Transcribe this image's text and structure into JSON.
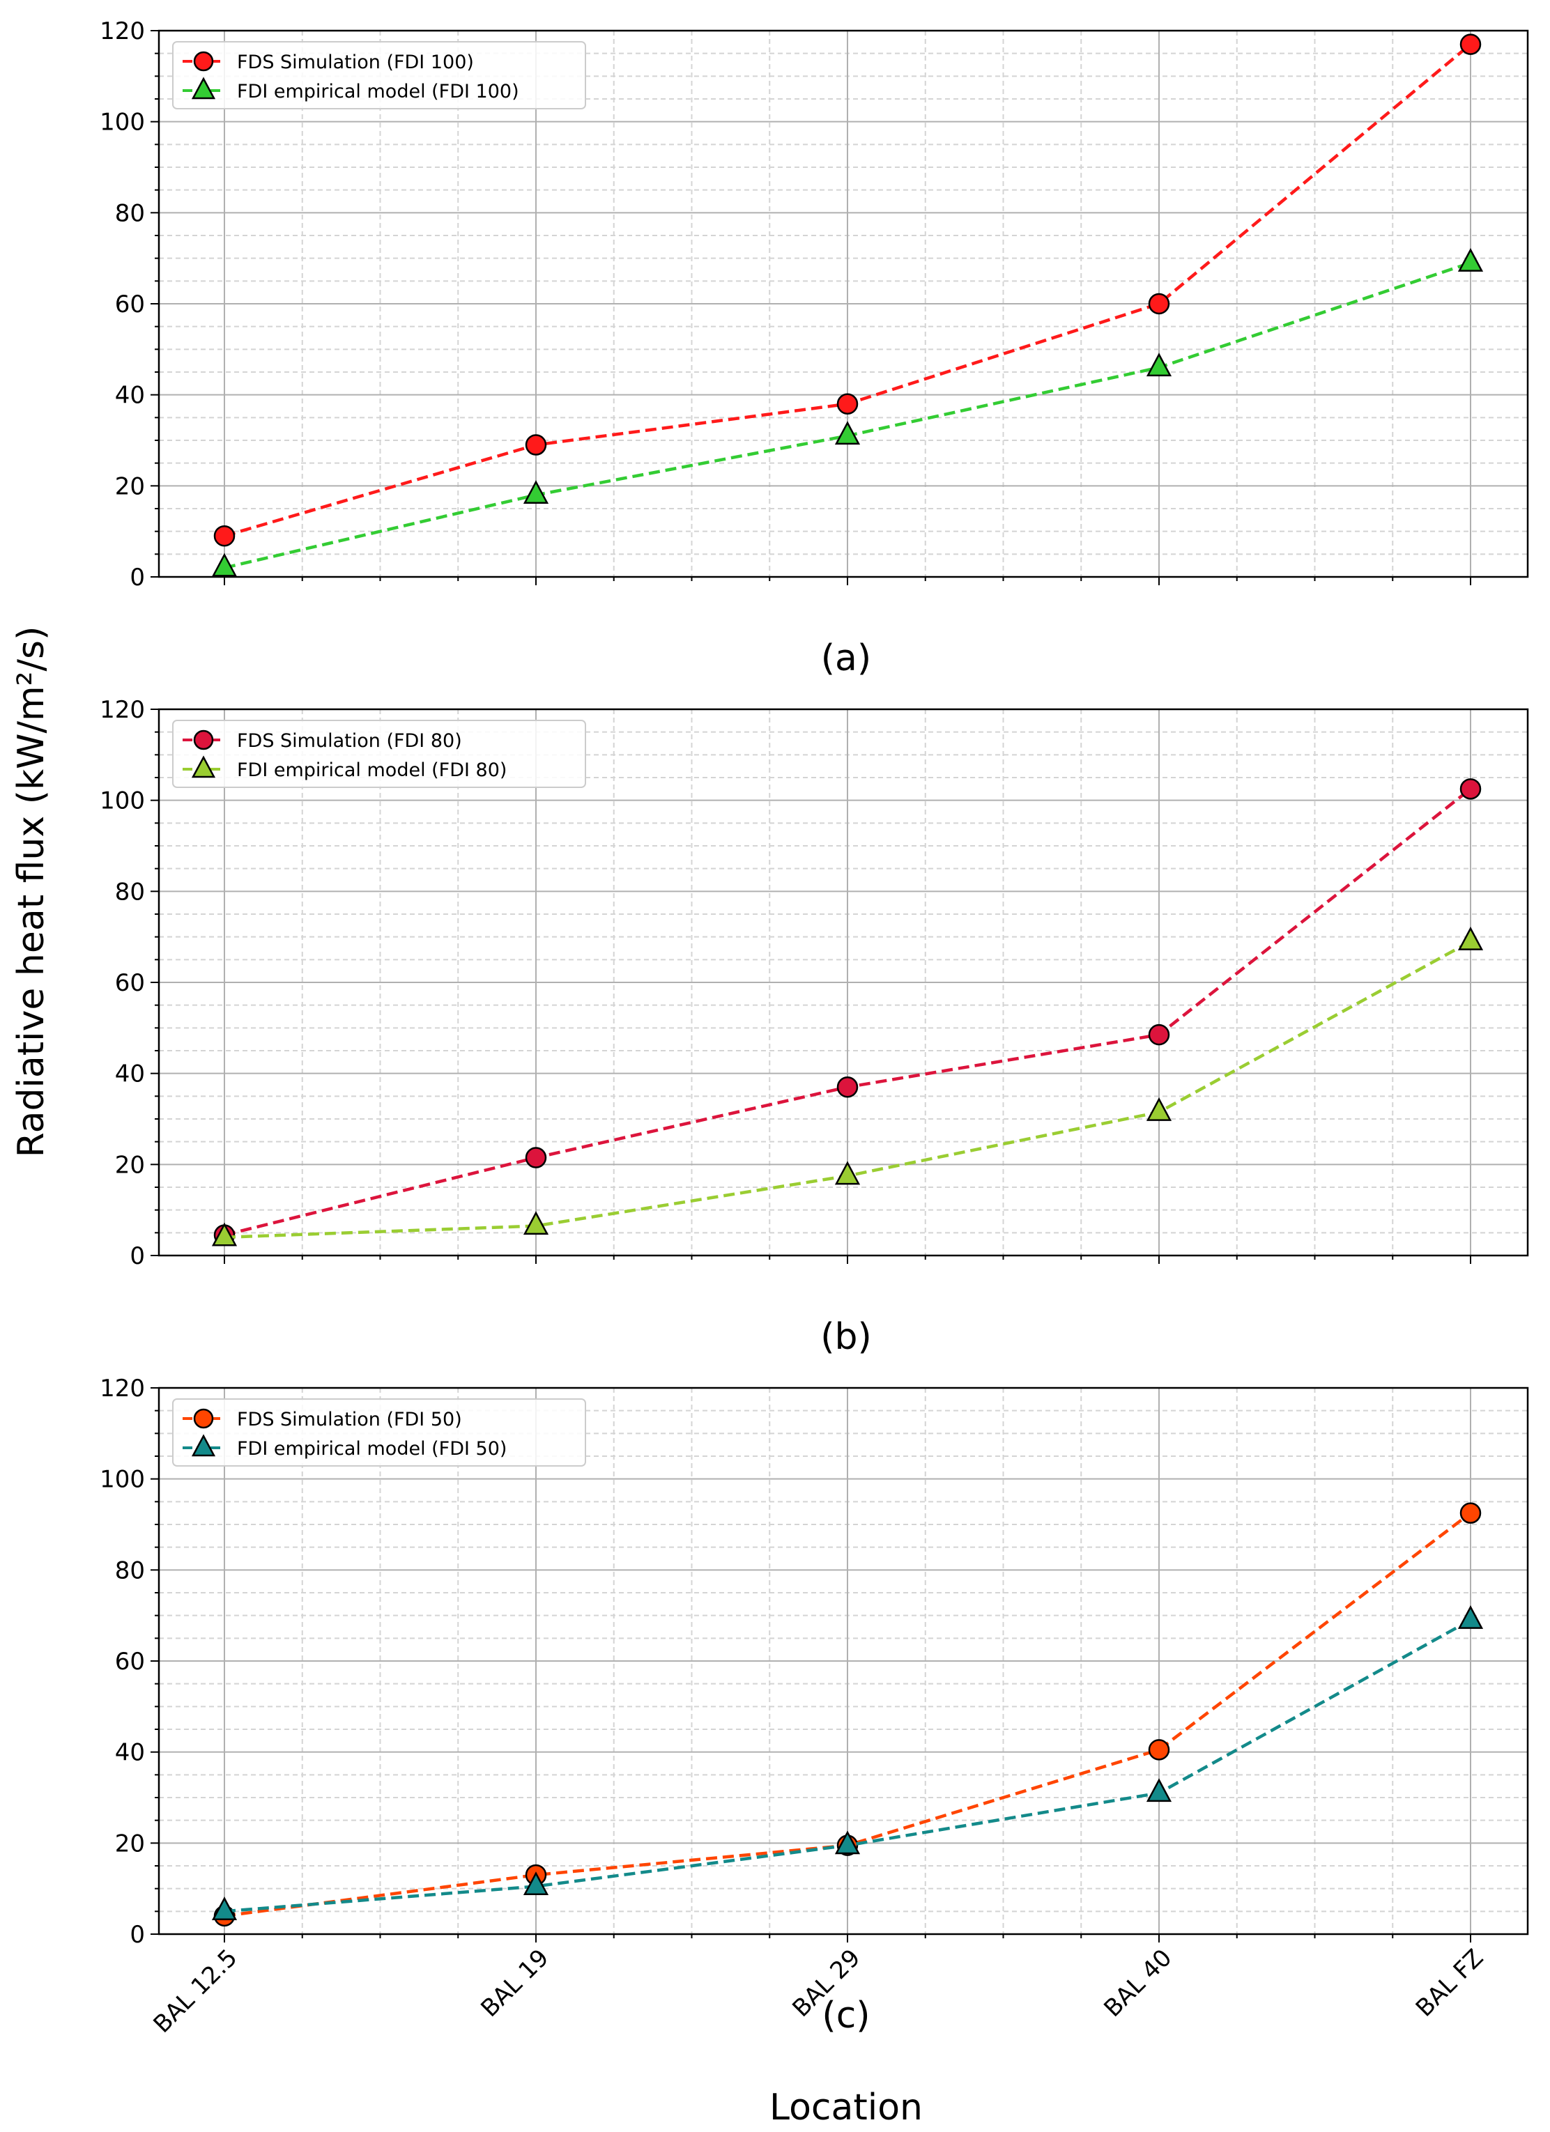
{
  "ylabel": "Radiative heat flux (kW/m²/s)",
  "xlabel": "Location",
  "chart_data": [
    {
      "type": "line",
      "panel_label": "(a)",
      "categories": [
        "BAL 12.5",
        "BAL 19",
        "BAL 29",
        "BAL 40",
        "BAL FZ"
      ],
      "ylim": [
        0,
        120
      ],
      "yticks": [
        0,
        20,
        40,
        60,
        80,
        100,
        120
      ],
      "grid": true,
      "legend_position": "top-left",
      "series": [
        {
          "name": "FDS Simulation (FDI 100)",
          "values": [
            9,
            29,
            38,
            60,
            117
          ],
          "color": "#ff1a1a",
          "marker": "circle"
        },
        {
          "name": "FDI empirical model (FDI 100)",
          "values": [
            2,
            18,
            31,
            46,
            69
          ],
          "color": "#33cc33",
          "marker": "triangle"
        }
      ]
    },
    {
      "type": "line",
      "panel_label": "(b)",
      "categories": [
        "BAL 12.5",
        "BAL 19",
        "BAL 29",
        "BAL 40",
        "BAL FZ"
      ],
      "ylim": [
        0,
        120
      ],
      "yticks": [
        0,
        20,
        40,
        60,
        80,
        100,
        120
      ],
      "grid": true,
      "legend_position": "top-left",
      "series": [
        {
          "name": "FDS Simulation (FDI 80)",
          "values": [
            4.5,
            21.5,
            37,
            48.5,
            102.5
          ],
          "color": "#dc143c",
          "marker": "circle"
        },
        {
          "name": "FDI empirical model (FDI 80)",
          "values": [
            4,
            6.5,
            17.5,
            31.5,
            69
          ],
          "color": "#9acd32",
          "marker": "triangle"
        }
      ]
    },
    {
      "type": "line",
      "panel_label": "(c)",
      "categories": [
        "BAL 12.5",
        "BAL 19",
        "BAL 29",
        "BAL 40",
        "BAL FZ"
      ],
      "ylim": [
        0,
        120
      ],
      "yticks": [
        0,
        20,
        40,
        60,
        80,
        100,
        120
      ],
      "grid": true,
      "legend_position": "top-left",
      "series": [
        {
          "name": "FDS Simulation (FDI 50)",
          "values": [
            4,
            13,
            19.5,
            40.5,
            92.5
          ],
          "color": "#ff4500",
          "marker": "circle"
        },
        {
          "name": "FDI empirical model (FDI 50)",
          "values": [
            5,
            10.5,
            19.5,
            31,
            69
          ],
          "color": "#138a8a",
          "marker": "triangle"
        }
      ]
    }
  ]
}
